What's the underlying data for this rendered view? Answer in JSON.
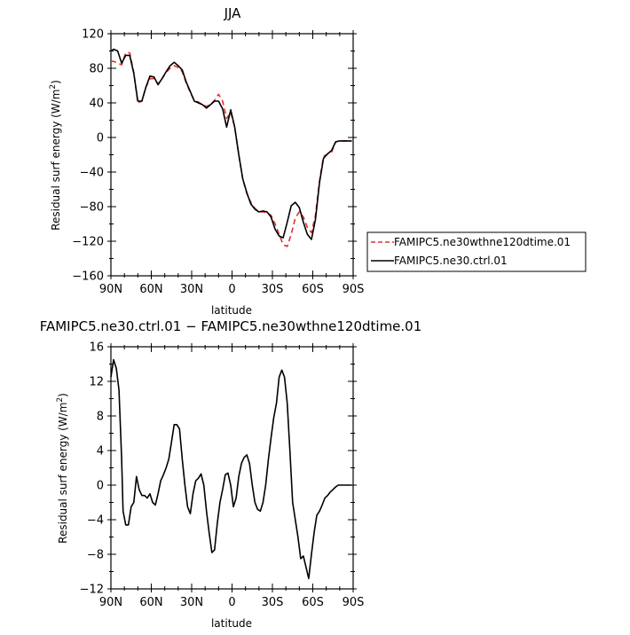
{
  "chart_data": [
    {
      "type": "line",
      "title": "JJA",
      "xlabel": "latitude",
      "ylabel": "Residual surf energy (W/m²)",
      "ylabel_main": "Residual surf energy (W/m",
      "ylabel_sup": "2",
      "ylabel_close": ")",
      "xlim": [
        90,
        -90
      ],
      "ylim": [
        -160,
        120
      ],
      "x_ticks": [
        90,
        60,
        30,
        0,
        -30,
        -60,
        -90
      ],
      "x_tick_labels": [
        "90N",
        "60N",
        "30N",
        "0",
        "30S",
        "60S",
        "90S"
      ],
      "y_ticks": [
        120,
        80,
        40,
        0,
        -40,
        -80,
        -120,
        -160
      ],
      "y_tick_labels": [
        "120",
        "80",
        "40",
        "0",
        "−40",
        "−80",
        "−120",
        "−160"
      ],
      "grid": false,
      "legend_position": "right",
      "series": [
        {
          "name": "FAMIPC5.ne30wthne120dtime.01",
          "color": "#e03030",
          "dash": "dashed",
          "x": [
            90,
            88,
            85,
            82,
            79,
            76,
            73,
            70,
            67,
            64,
            61,
            58,
            55,
            52,
            49,
            46,
            43,
            40,
            37,
            34,
            31,
            28,
            25,
            22,
            19,
            16,
            13,
            10,
            7,
            4,
            1,
            -2,
            -5,
            -8,
            -11,
            -14,
            -17,
            -20,
            -23,
            -26,
            -29,
            -32,
            -35,
            -38,
            -41,
            -44,
            -47,
            -50,
            -53,
            -56,
            -59,
            -62,
            -65,
            -68,
            -71,
            -74,
            -77,
            -80,
            -83,
            -86,
            -89
          ],
          "y": [
            88,
            88,
            86,
            84,
            98,
            98,
            75,
            40,
            42,
            58,
            68,
            68,
            62,
            68,
            75,
            80,
            83,
            81,
            76,
            63,
            52,
            43,
            41,
            38,
            36,
            38,
            43,
            50,
            42,
            22,
            29,
            12,
            -20,
            -48,
            -65,
            -75,
            -82,
            -86,
            -86,
            -87,
            -90,
            -100,
            -112,
            -124,
            -126,
            -112,
            -93,
            -86,
            -92,
            -104,
            -110,
            -90,
            -50,
            -22,
            -19,
            -17,
            -5,
            -4,
            -4,
            -4,
            -4
          ]
        },
        {
          "name": "FAMIPC5.ne30.ctrl.01",
          "color": "#000000",
          "dash": "solid",
          "x": [
            90,
            88,
            85,
            82,
            79,
            76,
            73,
            70,
            67,
            64,
            61,
            58,
            55,
            52,
            49,
            46,
            43,
            40,
            37,
            34,
            31,
            28,
            25,
            22,
            19,
            16,
            13,
            10,
            7,
            4,
            1,
            -2,
            -5,
            -8,
            -11,
            -14,
            -17,
            -20,
            -23,
            -26,
            -29,
            -32,
            -35,
            -38,
            -41,
            -44,
            -47,
            -50,
            -53,
            -56,
            -59,
            -62,
            -65,
            -68,
            -71,
            -74,
            -77,
            -80,
            -83,
            -86,
            -89
          ],
          "y": [
            100,
            102,
            100,
            86,
            95,
            95,
            74,
            42,
            42,
            58,
            71,
            70,
            61,
            68,
            76,
            83,
            87,
            83,
            78,
            64,
            53,
            42,
            40,
            38,
            34,
            38,
            42,
            42,
            33,
            12,
            32,
            12,
            -20,
            -48,
            -64,
            -77,
            -83,
            -86,
            -85,
            -86,
            -92,
            -106,
            -114,
            -116,
            -98,
            -79,
            -75,
            -81,
            -98,
            -112,
            -118,
            -95,
            -52,
            -24,
            -19,
            -15,
            -5,
            -4,
            -4,
            -4,
            -4
          ]
        }
      ]
    },
    {
      "type": "line",
      "title": "FAMIPC5.ne30.ctrl.01 − FAMIPC5.ne30wthne120dtime.01",
      "xlabel": "latitude",
      "ylabel": "Residual surf energy (W/m²)",
      "ylabel_main": "Residual surf energy (W/m",
      "ylabel_sup": "2",
      "ylabel_close": ")",
      "xlim": [
        90,
        -90
      ],
      "ylim": [
        -12,
        16
      ],
      "x_ticks": [
        90,
        60,
        30,
        0,
        -30,
        -60,
        -90
      ],
      "x_tick_labels": [
        "90N",
        "60N",
        "30N",
        "0",
        "30S",
        "60S",
        "90S"
      ],
      "y_ticks": [
        16,
        12,
        8,
        4,
        0,
        -4,
        -8,
        -12
      ],
      "y_tick_labels": [
        "16",
        "12",
        "8",
        "4",
        "0",
        "−4",
        "−8",
        "−12"
      ],
      "grid": false,
      "series": [
        {
          "color": "#000000",
          "dash": "solid",
          "x": [
            90,
            88,
            86,
            84,
            82,
            81,
            79,
            77,
            75,
            73,
            71,
            69,
            67,
            65,
            63,
            61,
            59,
            57,
            55,
            53,
            51,
            49,
            47,
            45,
            43,
            41,
            39,
            37,
            35,
            33,
            31,
            29,
            27,
            25,
            23,
            21,
            19,
            17,
            15,
            13,
            11,
            9,
            7,
            5,
            3,
            1,
            -1,
            -3,
            -5,
            -7,
            -9,
            -11,
            -13,
            -15,
            -17,
            -19,
            -21,
            -23,
            -25,
            -27,
            -29,
            -31,
            -33,
            -35,
            -37,
            -39,
            -41,
            -43,
            -45,
            -47,
            -49,
            -51,
            -53,
            -55,
            -57,
            -59,
            -61,
            -63,
            -65,
            -67,
            -69,
            -71,
            -73,
            -75,
            -77,
            -79,
            -81,
            -83,
            -85,
            -87,
            -89
          ],
          "y": [
            12.5,
            14.5,
            13.5,
            11,
            3,
            -3,
            -4.6,
            -4.6,
            -2.5,
            -2,
            1,
            -0.5,
            -1.2,
            -1.2,
            -1.5,
            -1,
            -2,
            -2.3,
            -1,
            0.5,
            1.2,
            2,
            3,
            5,
            7,
            7,
            6.5,
            3,
            0,
            -2.5,
            -3.3,
            -1,
            0.5,
            0.8,
            1.3,
            0,
            -3,
            -5.5,
            -7.8,
            -7.5,
            -4.5,
            -2,
            -0.5,
            1.2,
            1.4,
            0,
            -2.5,
            -1.5,
            1,
            2.5,
            3.2,
            3.5,
            2.5,
            0,
            -2,
            -2.8,
            -3,
            -2,
            0,
            3,
            5.5,
            7.8,
            9.5,
            12.5,
            13.3,
            12.5,
            9.5,
            4,
            -2,
            -4,
            -6,
            -8.5,
            -8.2,
            -9.5,
            -10.8,
            -8,
            -5.5,
            -3.5,
            -3,
            -2.3,
            -1.5,
            -1.2,
            -0.8,
            -0.5,
            -0.2,
            0,
            0,
            0,
            0,
            0,
            0
          ]
        }
      ]
    }
  ]
}
